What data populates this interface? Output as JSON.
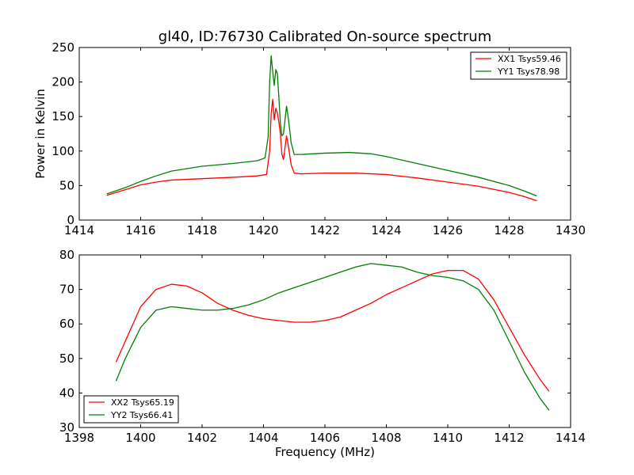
{
  "chart_data": [
    {
      "type": "line",
      "title": "gl40, ID:76730 Calibrated On-source spectrum",
      "xlabel": "",
      "ylabel": "Power in Kelvin",
      "xlim": [
        1414,
        1430
      ],
      "ylim": [
        0,
        250
      ],
      "xticks": [
        "1414",
        "1416",
        "1418",
        "1420",
        "1422",
        "1424",
        "1426",
        "1428",
        "1430"
      ],
      "yticks": [
        "0",
        "50",
        "100",
        "150",
        "200",
        "250"
      ],
      "grid": false,
      "legend_position": "top-right",
      "series": [
        {
          "name": "XX1 Tsys59.46",
          "color": "#ff0000",
          "x": [
            1414.9,
            1415.5,
            1416,
            1416.5,
            1417,
            1418,
            1419,
            1419.8,
            1420.1,
            1420.2,
            1420.25,
            1420.3,
            1420.35,
            1420.4,
            1420.45,
            1420.5,
            1420.55,
            1420.6,
            1420.65,
            1420.7,
            1420.75,
            1420.8,
            1420.85,
            1420.9,
            1421.0,
            1421.2,
            1422,
            1423,
            1424,
            1425,
            1426,
            1427,
            1428,
            1428.5,
            1428.9
          ],
          "y": [
            36,
            44,
            51,
            55,
            58,
            60,
            62,
            64,
            66,
            100,
            155,
            175,
            145,
            162,
            155,
            142,
            125,
            95,
            88,
            105,
            122,
            110,
            95,
            80,
            68,
            67,
            68,
            68,
            66,
            61,
            55,
            49,
            40,
            34,
            28
          ]
        },
        {
          "name": "YY1 Tsys78.98",
          "color": "#008000",
          "x": [
            1414.9,
            1415.5,
            1416,
            1416.5,
            1417,
            1418,
            1419,
            1419.8,
            1420.05,
            1420.15,
            1420.2,
            1420.25,
            1420.3,
            1420.35,
            1420.4,
            1420.45,
            1420.5,
            1420.55,
            1420.6,
            1420.65,
            1420.7,
            1420.75,
            1420.8,
            1420.85,
            1420.9,
            1421.0,
            1421.2,
            1422,
            1422.8,
            1423.5,
            1424,
            1425,
            1426,
            1427,
            1428,
            1428.5,
            1428.9
          ],
          "y": [
            38,
            47,
            56,
            64,
            71,
            78,
            82,
            86,
            90,
            120,
            200,
            238,
            215,
            195,
            218,
            212,
            178,
            140,
            122,
            125,
            145,
            165,
            150,
            132,
            112,
            95,
            95,
            97,
            98,
            96,
            92,
            82,
            72,
            62,
            50,
            42,
            35
          ]
        }
      ]
    },
    {
      "type": "line",
      "title": "",
      "xlabel": "Frequency (MHz)",
      "ylabel": "",
      "xlim": [
        1398,
        1414
      ],
      "ylim": [
        30,
        80
      ],
      "xticks": [
        "1398",
        "1400",
        "1402",
        "1404",
        "1406",
        "1408",
        "1410",
        "1412",
        "1414"
      ],
      "yticks": [
        "30",
        "40",
        "50",
        "60",
        "70",
        "80"
      ],
      "grid": false,
      "legend_position": "bottom-left",
      "series": [
        {
          "name": "XX2 Tsys65.19",
          "color": "#ff0000",
          "x": [
            1399.2,
            1399.5,
            1400,
            1400.5,
            1401,
            1401.5,
            1402,
            1402.5,
            1403,
            1403.5,
            1404,
            1404.5,
            1405,
            1405.5,
            1406,
            1406.5,
            1407,
            1407.5,
            1408,
            1408.5,
            1409,
            1409.5,
            1410,
            1410.5,
            1411,
            1411.5,
            1412,
            1412.5,
            1413,
            1413.3
          ],
          "y": [
            49,
            55,
            65,
            70,
            71.5,
            71,
            69,
            66,
            64,
            62.5,
            61.5,
            61,
            60.5,
            60.5,
            61,
            62,
            64,
            66,
            68.5,
            70.5,
            72.5,
            74.5,
            75.5,
            75.5,
            73,
            67,
            59,
            51,
            44,
            40.5
          ]
        },
        {
          "name": "YY2 Tsys66.41",
          "color": "#008000",
          "x": [
            1399.2,
            1399.5,
            1400,
            1400.5,
            1401,
            1401.5,
            1402,
            1402.5,
            1403,
            1403.5,
            1404,
            1404.5,
            1405,
            1405.5,
            1406,
            1406.5,
            1407,
            1407.5,
            1408,
            1408.5,
            1409,
            1409.5,
            1410,
            1410.5,
            1411,
            1411.5,
            1412,
            1412.5,
            1413,
            1413.3
          ],
          "y": [
            43.5,
            50,
            59,
            64,
            65,
            64.5,
            64,
            64,
            64.5,
            65.5,
            67,
            69,
            70.5,
            72,
            73.5,
            75,
            76.5,
            77.5,
            77,
            76.5,
            75,
            74,
            73.5,
            72.5,
            70,
            64,
            55,
            46,
            38.5,
            35
          ]
        }
      ]
    }
  ]
}
